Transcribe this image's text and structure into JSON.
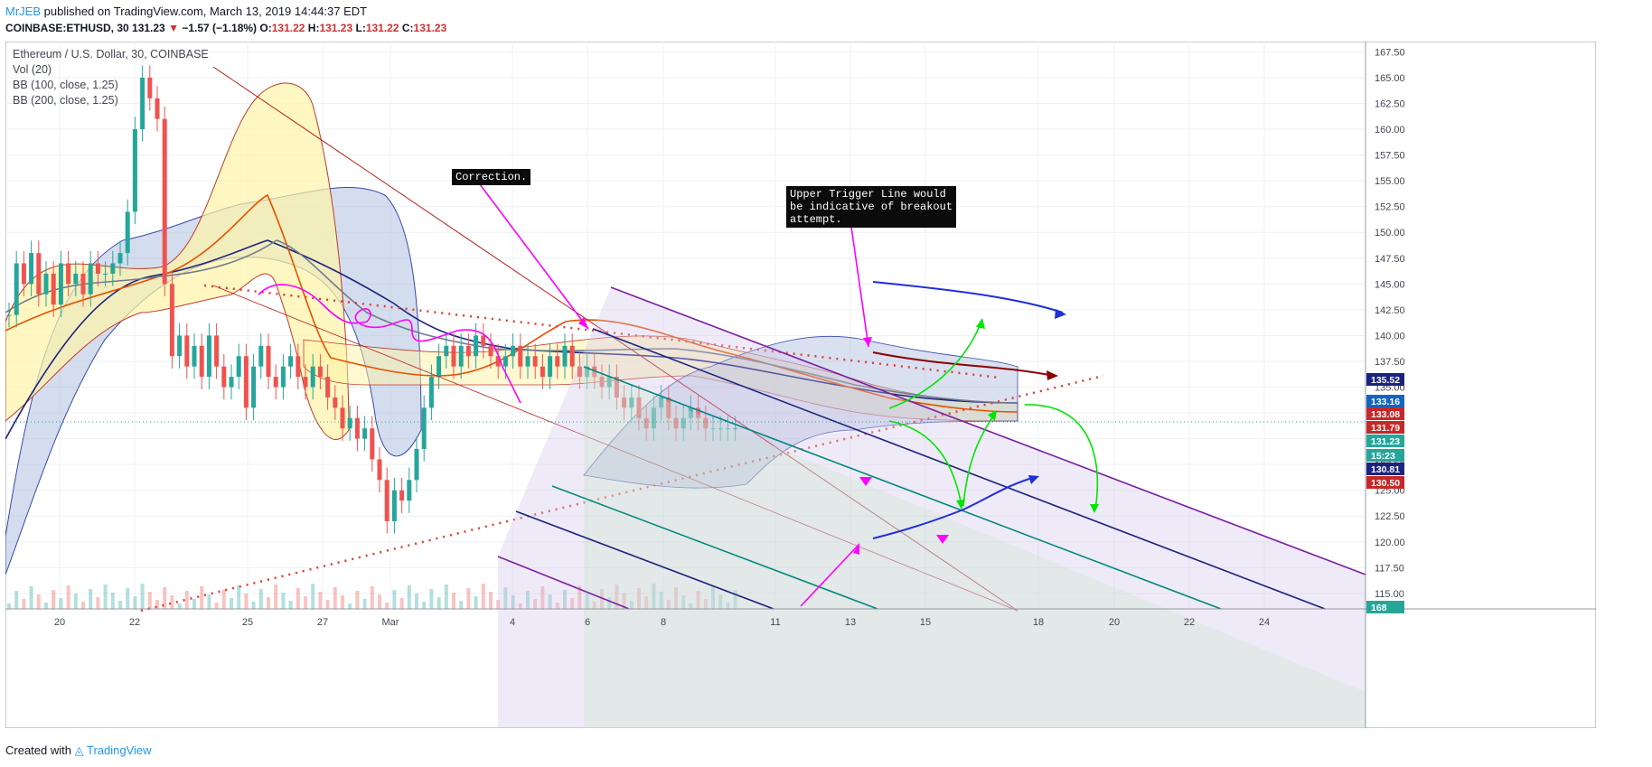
{
  "header": {
    "author": "MrJEB",
    "published": "published on TradingView.com, March 13, 2019 14:44:37 EDT",
    "symbol_line": "COINBASE:ETHUSD, 30",
    "last": "131.23",
    "arrow": "▼",
    "change": "−1.57 (−1.18%)",
    "o_label": "O:",
    "o": "131.22",
    "h_label": "H:",
    "h": "131.23",
    "l_label": "L:",
    "l": "131.22",
    "c_label": "C:",
    "c": "131.23"
  },
  "legend": {
    "title": "Ethereum / U.S. Dollar, 30, COINBASE",
    "vol": "Vol (20)",
    "bb1": "BB (100, close, 1.25)",
    "bb2": "BB (200, close, 1.25)"
  },
  "annotations": {
    "correction": "Correction.",
    "trigger": "Upper Trigger Line would\nbe indicative of breakout\nattempt."
  },
  "footer": {
    "created": "Created with",
    "brand": "TradingView"
  },
  "colors": {
    "up": "#26a69a",
    "down": "#ef5350",
    "bb_upper": "#c0392b",
    "bb_basis_orange": "#e65100",
    "bb_fill_yellow": "#fff3a6",
    "bb_fill_blue": "#9fb4d9",
    "trend_red": "#e53935",
    "pitchfork_purple": "#7b1fa2",
    "pitchfork_blue": "#1a237e",
    "pitchfork_green": "#00897b",
    "magenta": "#ff00ff",
    "green_arrow": "#00e600",
    "blue_arrow": "#1f2fd6",
    "darkred_arrow": "#8b0000"
  },
  "chart_data": {
    "type": "line",
    "title": "Ethereum / U.S. Dollar, 30, COINBASE",
    "xlabel": "",
    "ylabel": "",
    "x_ticks": [
      "20",
      "22",
      "25",
      "27",
      "Mar",
      "4",
      "6",
      "8",
      "11",
      "13",
      "15",
      "18",
      "20",
      "22",
      "24"
    ],
    "ylim": [
      113.5,
      168.5
    ],
    "y_ticks": [
      "115.00",
      "117.50",
      "120.00",
      "122.50",
      "125.00",
      "127.50",
      "130.00",
      "132.50",
      "135.00",
      "137.50",
      "140.00",
      "142.50",
      "145.00",
      "147.50",
      "150.00",
      "152.50",
      "155.00",
      "157.50",
      "160.00",
      "162.50",
      "165.00",
      "167.50"
    ],
    "price_labels": [
      {
        "value": "135.52",
        "color": "#1a237e"
      },
      {
        "value": "133.16",
        "color": "#1565c0"
      },
      {
        "value": "133.08",
        "color": "#c62828"
      },
      {
        "value": "131.79",
        "color": "#c62828"
      },
      {
        "value": "131.23",
        "color": "#26a69a"
      },
      {
        "value": "15:23",
        "color": "#26a69a"
      },
      {
        "value": "130.81",
        "color": "#1a237e"
      },
      {
        "value": "130.50",
        "color": "#c62828"
      },
      {
        "value": "168",
        "color": "#26a69a"
      }
    ],
    "series": [
      {
        "name": "ETHUSD",
        "x": [
          0,
          1,
          2,
          3,
          4,
          5,
          6,
          7,
          8,
          9,
          10,
          11,
          12,
          13,
          14,
          15,
          16,
          17,
          18,
          19,
          20,
          21,
          22,
          23,
          24,
          25,
          26,
          27,
          28,
          29,
          30,
          31,
          32,
          33,
          34,
          35,
          36,
          37,
          38,
          39,
          40,
          41,
          42,
          43,
          44,
          45,
          46,
          47,
          48,
          49,
          50,
          51,
          52,
          53,
          54,
          55,
          56,
          57,
          58,
          59,
          60,
          61,
          62,
          63,
          64,
          65,
          66,
          67,
          68,
          69,
          70,
          71,
          72,
          73,
          74,
          75,
          76,
          77,
          78,
          79,
          80,
          81,
          82,
          83,
          84,
          85,
          86,
          87,
          88,
          89,
          90,
          91,
          92,
          93,
          94,
          95,
          96,
          97,
          98,
          99,
          100,
          101,
          102,
          103,
          104,
          105,
          106,
          107,
          108,
          109,
          110,
          111,
          112,
          113,
          114,
          115,
          116,
          117,
          118
        ],
        "values": [
          142,
          147,
          145,
          148,
          144,
          146,
          143,
          147,
          145,
          146,
          144,
          147,
          146,
          146,
          147,
          148,
          152,
          160,
          165,
          163,
          161,
          145,
          138,
          140,
          137,
          139,
          136,
          140,
          137,
          135,
          136,
          138,
          133,
          137,
          139,
          136,
          135,
          137,
          138,
          136,
          135,
          137,
          136,
          134,
          133,
          131,
          132,
          130,
          131,
          128,
          126,
          122,
          125,
          124,
          126,
          129,
          133,
          136,
          138,
          139,
          137,
          139,
          138,
          140,
          139,
          138,
          137,
          138,
          139,
          137,
          138,
          137,
          136,
          138,
          137,
          139,
          137,
          136,
          137,
          136,
          135,
          136,
          134,
          133,
          134,
          132,
          131,
          133,
          134,
          132,
          131,
          132,
          133,
          132,
          131,
          131,
          131,
          131,
          131,
          131,
          131,
          131,
          131,
          131,
          131,
          131,
          131,
          131,
          131,
          131,
          131,
          131,
          131,
          131,
          131,
          131,
          131,
          131,
          131
        ]
      }
    ],
    "grid": true,
    "legend": "top-left"
  }
}
